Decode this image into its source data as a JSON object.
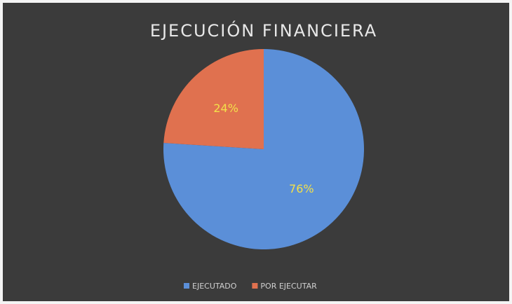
{
  "chart_data": {
    "type": "pie",
    "title": "EJECUCIÓN FINANCIERA",
    "categories": [
      "EJECUTADO",
      "POR EJECUTAR"
    ],
    "values": [
      76,
      24
    ],
    "value_labels": [
      "76%",
      "24%"
    ],
    "colors": [
      "#5b8fd8",
      "#e0714f"
    ],
    "legend": "bottom"
  }
}
